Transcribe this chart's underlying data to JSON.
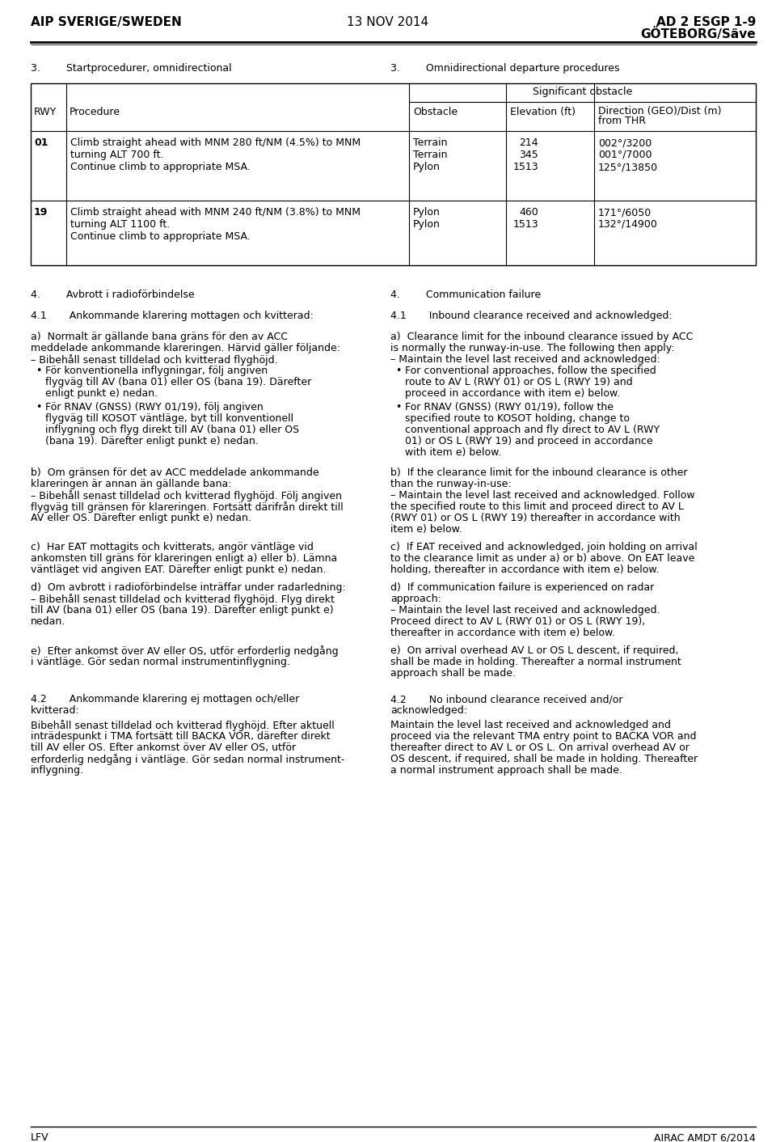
{
  "header_left": "AIP SVERIGE/SWEDEN",
  "header_center": "13 NOV 2014",
  "header_right_line1": "AD 2 ESGP 1-9",
  "header_right_line2": "GÖTEBORG/Säve",
  "footer_left": "LFV",
  "footer_right": "AIRAC AMDT 6/2014",
  "section3_left": "3.        Startprocedurer, omnidirectional",
  "section3_right": "3.        Omnidirectional departure procedures",
  "table_rows": [
    {
      "rwy": "01",
      "procedure_lines": [
        "Climb straight ahead with MNM 280 ft/NM (4.5%) to MNM",
        "turning ALT 700 ft.",
        "Continue climb to appropriate MSA."
      ],
      "obstacles": [
        "Terrain",
        "Terrain",
        "Pylon"
      ],
      "elevations": [
        "214",
        "345",
        "1513"
      ],
      "directions": [
        "002°/3200",
        "001°/7000",
        "125°/13850"
      ]
    },
    {
      "rwy": "19",
      "procedure_lines": [
        "Climb straight ahead with MNM 240 ft/NM (3.8%) to MNM",
        "turning ALT 1100 ft.",
        "Continue climb to appropriate MSA."
      ],
      "obstacles": [
        "Pylon",
        "Pylon"
      ],
      "elevations": [
        "460",
        "1513"
      ],
      "directions": [
        "171°/6050",
        "132°/14900"
      ]
    }
  ],
  "section4_left": "4.        Avbrott i radioförbindelse",
  "section4_right": "4.        Communication failure",
  "section41_left": "4.1       Ankommande klarering mottagen och kvitterad:",
  "section41_right": "4.1       Inbound clearance received and acknowledged:",
  "para_a_left_lines": [
    "a)  Normalt är gällande bana gräns för den av ACC",
    "meddelade ankommande klareringen. Härvid gäller följande:",
    "– Bibehåll senast tilldelad och kvitterad flyghöjd."
  ],
  "para_a_left_bullet1": [
    "För konventionella inflygningar, följ angiven",
    "flygväg till AV (bana 01) eller OS (bana 19). Därefter",
    "enligt punkt e) nedan."
  ],
  "para_a_left_bullet2": [
    "För RNAV (GNSS) (RWY 01/19), följ angiven",
    "flygväg till KOSOT väntläge, byt till konventionell",
    "inflygning och flyg direkt till AV (bana 01) eller OS",
    "(bana 19). Därefter enligt punkt e) nedan."
  ],
  "para_a_right_lines": [
    "a)  Clearance limit for the inbound clearance issued by ACC",
    "is normally the runway-in-use. The following then apply:",
    "– Maintain the level last received and acknowledged:"
  ],
  "para_a_right_bullet1": [
    "For conventional approaches, follow the specified",
    "route to AV L (RWY 01) or OS L (RWY 19) and",
    "proceed in accordance with item e) below."
  ],
  "para_a_right_bullet2": [
    "For RNAV (GNSS) (RWY 01/19), follow the",
    "specified route to KOSOT holding, change to",
    "conventional approach and fly direct to AV L (RWY",
    "01) or OS L (RWY 19) and proceed in accordance",
    "with item e) below."
  ],
  "para_b_left_lines": [
    "b)  Om gränsen för det av ACC meddelade ankommande",
    "klareringen är annan än gällande bana:",
    "– Bibehåll senast tilldelad och kvitterad flyghöjd. Följ angiven",
    "flygväg till gränsen för klareringen. Fortsätt därifrån direkt till",
    "AV eller OS. Därefter enligt punkt e) nedan."
  ],
  "para_b_right_lines": [
    "b)  If the clearance limit for the inbound clearance is other",
    "than the runway-in-use:",
    "– Maintain the level last received and acknowledged. Follow",
    "the specified route to this limit and proceed direct to AV L",
    "(RWY 01) or OS L (RWY 19) thereafter in accordance with",
    "item e) below."
  ],
  "para_c_left_lines": [
    "c)  Har EAT mottagits och kvitterats, angör väntläge vid",
    "ankomsten till gräns för klareringen enligt a) eller b). Lämna",
    "väntläget vid angiven EAT. Därefter enligt punkt e) nedan."
  ],
  "para_c_right_lines": [
    "c)  If EAT received and acknowledged, join holding on arrival",
    "to the clearance limit as under a) or b) above. On EAT leave",
    "holding, thereafter in accordance with item e) below."
  ],
  "para_d_left_lines": [
    "d)  Om avbrott i radioförbindelse inträffar under radarledning:",
    "– Bibehåll senast tilldelad och kvitterad flyghöjd. Flyg direkt",
    "till AV (bana 01) eller OS (bana 19). Därefter enligt punkt e)",
    "nedan."
  ],
  "para_d_right_lines": [
    "d)  If communication failure is experienced on radar",
    "approach:",
    "– Maintain the level last received and acknowledged.",
    "Proceed direct to AV L (RWY 01) or OS L (RWY 19),",
    "thereafter in accordance with item e) below."
  ],
  "para_e_left_lines": [
    "e)  Efter ankomst över AV eller OS, utför erforderlig nedgång",
    "i väntläge. Gör sedan normal instrumentinflygning."
  ],
  "para_e_right_lines": [
    "e)  On arrival overhead AV L or OS L descent, if required,",
    "shall be made in holding. Thereafter a normal instrument",
    "approach shall be made."
  ],
  "section42_left_line1": "4.2       Ankommande klarering ej mottagen och/eller",
  "section42_left_line2": "kvitterad:",
  "section42_right_line1": "4.2       No inbound clearance received and/or",
  "section42_right_line2": "acknowledged:",
  "para_42_left_lines": [
    "Bibehåll senast tilldelad och kvitterad flyghöjd. Efter aktuell",
    "inträdespunkt i TMA fortsätt till BACKA VOR, därefter direkt",
    "till AV eller OS. Efter ankomst över AV eller OS, utför",
    "erforderlig nedgång i väntläge. Gör sedan normal instrument-",
    "inflygning."
  ],
  "para_42_right_lines": [
    "Maintain the level last received and acknowledged and",
    "proceed via the relevant TMA entry point to BACKA VOR and",
    "thereafter direct to AV L or OS L. On arrival overhead AV or",
    "OS descent, if required, shall be made in holding. Thereafter",
    "a normal instrument approach shall be made."
  ]
}
